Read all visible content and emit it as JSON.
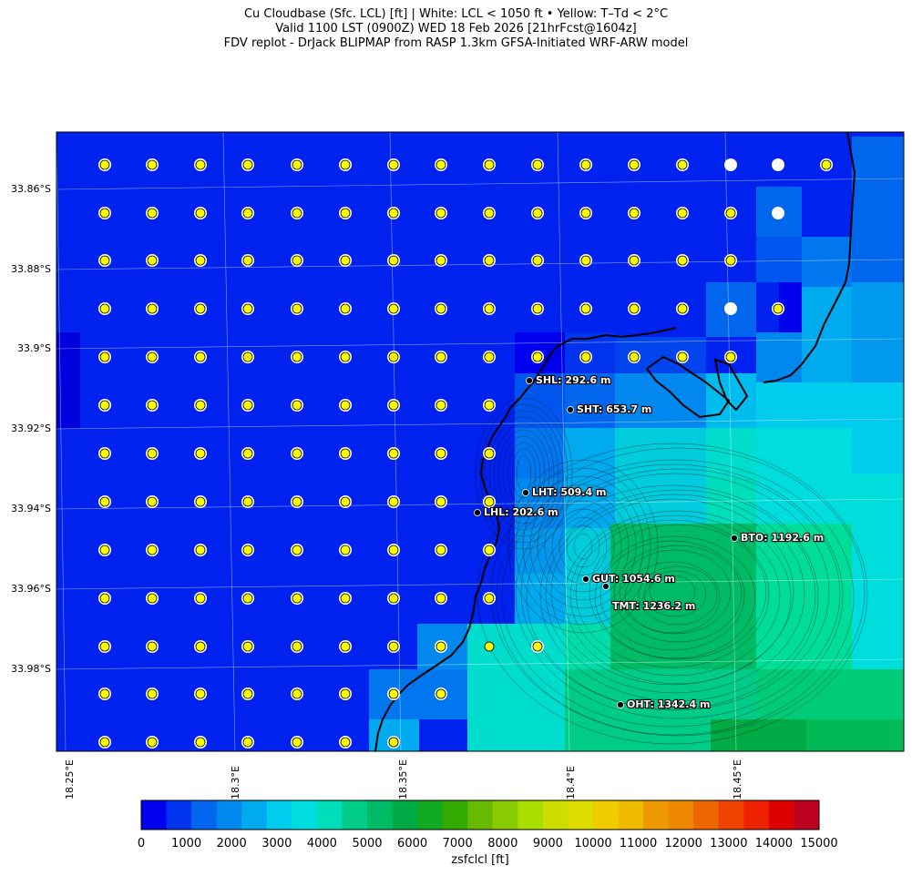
{
  "title": {
    "line1": "Cu Cloudbase (Sfc. LCL) [ft]  |  White: LCL < 1050 ft • Yellow: T–Td < 2°C",
    "line2": "Valid 1100 LST (0900Z) WED 18 Feb 2026 [21hrFcst@1604z]",
    "line3": "FDV replot - DrJack BLIPMAP from RASP 1.3km GFSA-Initiated WRF-ARW model"
  },
  "map": {
    "lat_labels": [
      "33.86°S",
      "33.88°S",
      "33.9°S",
      "33.92°S",
      "33.94°S",
      "33.96°S",
      "33.98°S"
    ],
    "lon_labels": [
      "18.25°E",
      "18.3°E",
      "18.35°E",
      "18.4°E",
      "18.45°E"
    ],
    "stations": [
      {
        "name": "SHL: 292.6 m"
      },
      {
        "name": "SHT: 653.7 m"
      },
      {
        "name": "LHT: 509.4 m"
      },
      {
        "name": "LHL: 202.6 m"
      },
      {
        "name": "BTO: 1192.6 m"
      },
      {
        "name": "GUT: 1054.6 m"
      },
      {
        "name": "TMT: 1236.2 m"
      },
      {
        "name": "OHT: 1342.4 m"
      }
    ],
    "marker_legend": {
      "white": "LCL < 1050 ft",
      "yellow": "T–Td < 2°C"
    }
  },
  "colorbar": {
    "label": "zsfclcl [ft]",
    "ticks": [
      "0",
      "1000",
      "2000",
      "3000",
      "4000",
      "5000",
      "6000",
      "7000",
      "8000",
      "9000",
      "10000",
      "11000",
      "12000",
      "13000",
      "14000",
      "15000"
    ],
    "colors": [
      "#0000ee",
      "#0033ee",
      "#0066ee",
      "#0088ee",
      "#00aaee",
      "#00ccee",
      "#00dddd",
      "#00ddbb",
      "#00cc88",
      "#00bb66",
      "#00aa44",
      "#11aa22",
      "#33aa00",
      "#66bb00",
      "#88cc00",
      "#aadd00",
      "#ccdd00",
      "#dddd00",
      "#eecc00",
      "#eebb00",
      "#ee9900",
      "#ee8800",
      "#ee6600",
      "#ee4400",
      "#ee2200",
      "#dd0000",
      "#bb0022"
    ]
  }
}
